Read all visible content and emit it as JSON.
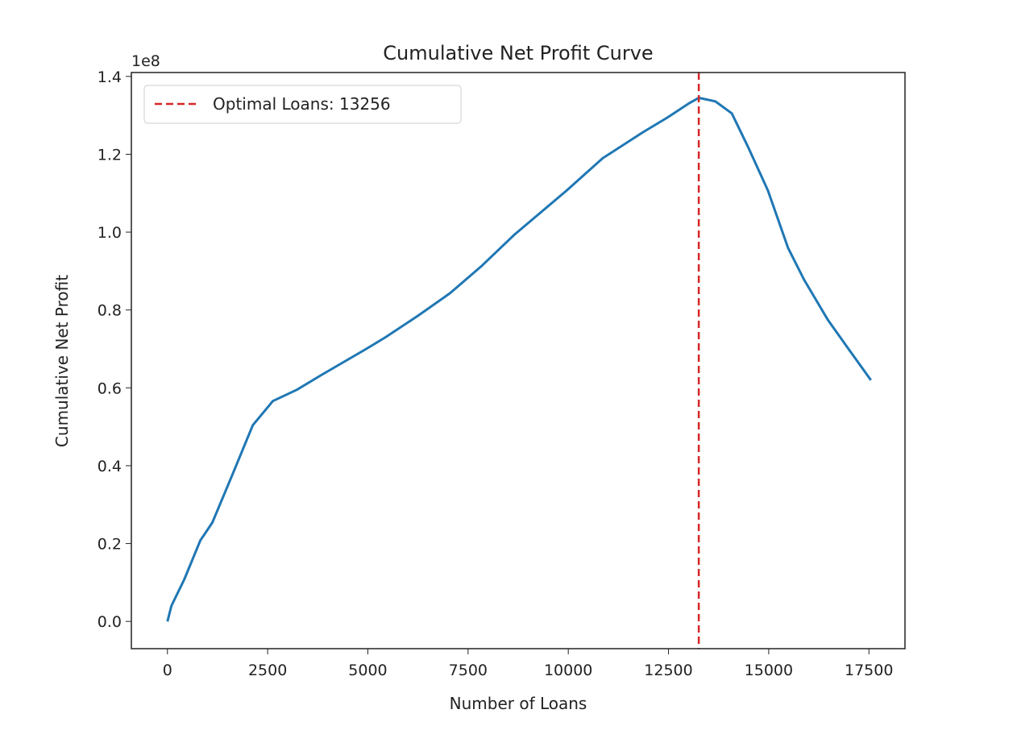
{
  "chart_data": {
    "type": "line",
    "title": "Cumulative Net Profit Curve",
    "xlabel": "Number of Loans",
    "ylabel": "Cumulative Net Profit",
    "y_offset_label": "1e8",
    "xlim": [
      -900,
      18400
    ],
    "ylim": [
      -0.07,
      1.41
    ],
    "xticks": [
      0,
      2500,
      5000,
      7500,
      10000,
      12500,
      15000,
      17500
    ],
    "yticks": [
      "0.0",
      "0.2",
      "0.4",
      "0.6",
      "0.8",
      "1.0",
      "1.2",
      "1.4"
    ],
    "grid": false,
    "legend_position": "top-left",
    "series": [
      {
        "color": "#1f77b4",
        "x": [
          0,
          100,
          420,
          820,
          1120,
          1630,
          2130,
          2630,
          3230,
          3840,
          4960,
          5440,
          6250,
          7050,
          7850,
          8650,
          9960,
          10860,
          11870,
          12470,
          13000,
          13256,
          13670,
          14080,
          14480,
          14980,
          15480,
          15880,
          16480,
          16990,
          17550
        ],
        "y": [
          0.0,
          0.04,
          0.108,
          0.208,
          0.254,
          0.379,
          0.504,
          0.566,
          0.595,
          0.633,
          0.7,
          0.73,
          0.785,
          0.843,
          0.914,
          0.993,
          1.107,
          1.19,
          1.257,
          1.294,
          1.33,
          1.345,
          1.336,
          1.305,
          1.22,
          1.107,
          0.96,
          0.878,
          0.774,
          0.7,
          0.62
        ]
      }
    ],
    "vline": {
      "x": 13256,
      "color": "#d62728",
      "style": "dashed",
      "name": "Optimal Loans: 13256"
    }
  }
}
